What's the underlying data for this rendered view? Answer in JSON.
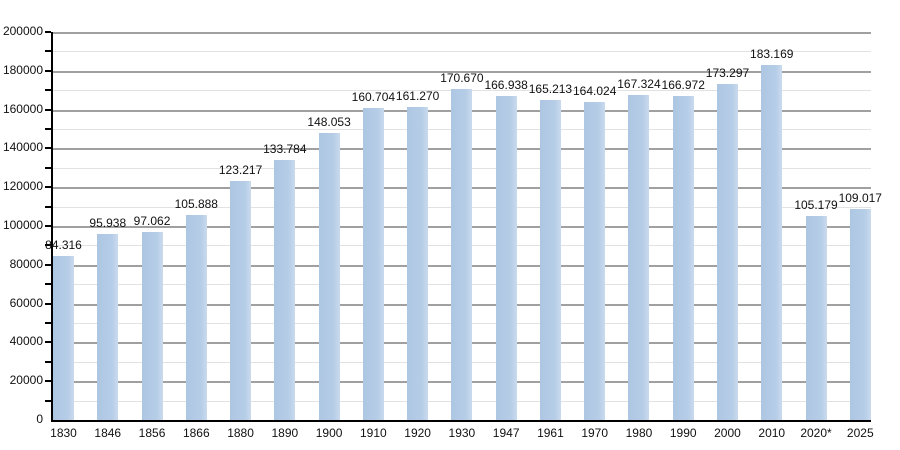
{
  "chart_data": {
    "type": "bar",
    "title": "",
    "xlabel": "",
    "ylabel": "",
    "categories": [
      "1830",
      "1846",
      "1856",
      "1866",
      "1880",
      "1890",
      "1900",
      "1910",
      "1920",
      "1930",
      "1947",
      "1961",
      "1970",
      "1980",
      "1990",
      "2000",
      "2010",
      "2020*",
      "2025"
    ],
    "values": [
      84316,
      95938,
      97062,
      105888,
      123217,
      133784,
      148053,
      160704,
      161270,
      170670,
      166938,
      165213,
      164024,
      167324,
      166972,
      173297,
      183169,
      105179,
      109017
    ],
    "value_labels": [
      "84.316",
      "95.938",
      "97.062",
      "105.888",
      "123.217",
      "133.784",
      "148.053",
      "160.704",
      "161.270",
      "170.670",
      "166.938",
      "165.213",
      "164.024",
      "167.324",
      "166.972",
      "173.297",
      "183.169",
      "105.179",
      "109.017"
    ],
    "ylim": [
      0,
      200000
    ],
    "ytick_major_step": 20000,
    "ytick_minor_step": 10000,
    "ytick_labels": [
      "0",
      "20000",
      "40000",
      "60000",
      "80000",
      "100000",
      "120000",
      "140000",
      "160000",
      "180000",
      "200000"
    ],
    "grid": true,
    "legend": "none",
    "colors": {
      "bar_fill": "#b3cbe6",
      "bar_fill_light_edge": "#c9daee",
      "gridline_major": "#a0a0a0",
      "gridline_minor": "#e2e2e2",
      "axis": "#000000",
      "text": "#111111",
      "background": "#ffffff"
    }
  }
}
